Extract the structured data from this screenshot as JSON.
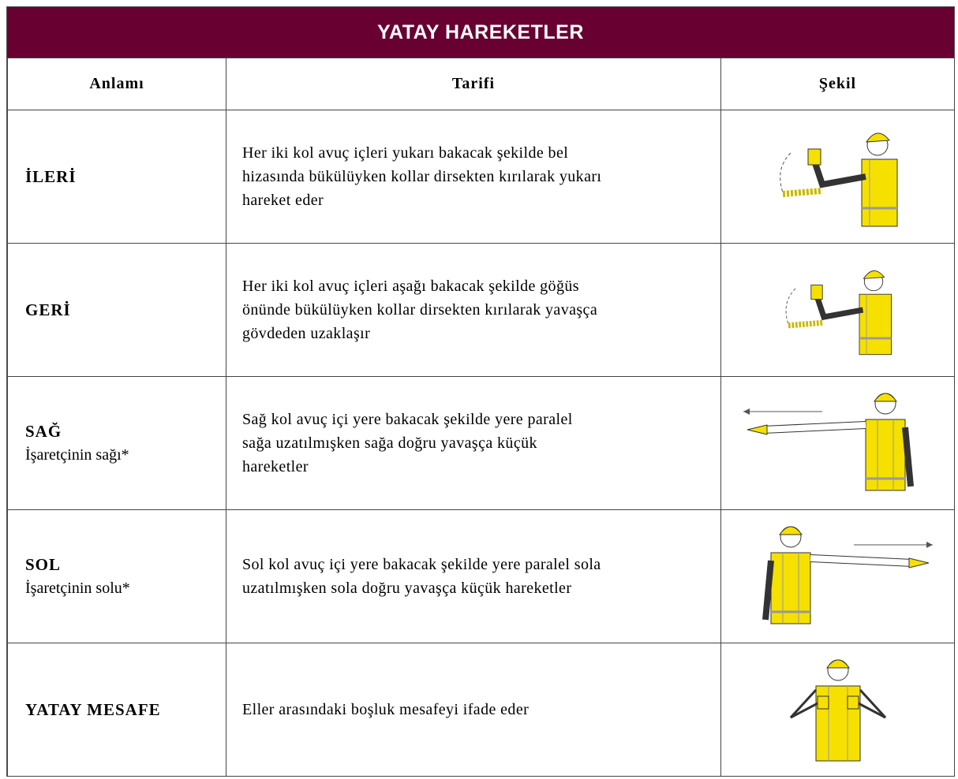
{
  "header": {
    "title": "YATAY HAREKETLER"
  },
  "table": {
    "columns": [
      "Anlamı",
      "Tarifi",
      "Şekil"
    ],
    "rows": [
      {
        "meaning": "İLERİ",
        "lines": [
          "Her iki kol avuç içleri yukarı bakacak şekilde bel",
          "hizasında bükülüyken kollar dirsekten kırılarak yukarı",
          "hareket eder"
        ]
      },
      {
        "meaning": "GERİ",
        "lines": [
          "Her iki kol avuç içleri aşağı bakacak şekilde göğüs",
          "önünde bükülüyken kollar dirsekten kırılarak yavaşça",
          "gövdeden uzaklaşır"
        ]
      },
      {
        "meaning": "SAĞ",
        "note": "İşaretçinin sağı*",
        "lines": [
          "Sağ kol avuç içi yere bakacak şekilde yere paralel",
          "sağa uzatılmışken sağa doğru yavaşça küçük",
          "hareketler"
        ]
      },
      {
        "meaning": "SOL",
        "note": "İşaretçinin solu*",
        "lines": [
          "Sol kol avuç içi yere bakacak şekilde yere paralel sola",
          "uzatılmışken sola doğru yavaşça küçük hareketler"
        ]
      },
      {
        "meaning": "YATAY MESAFE",
        "lines": [
          "Eller arasındaki boşluk mesafeyi ifade eder"
        ]
      }
    ]
  }
}
